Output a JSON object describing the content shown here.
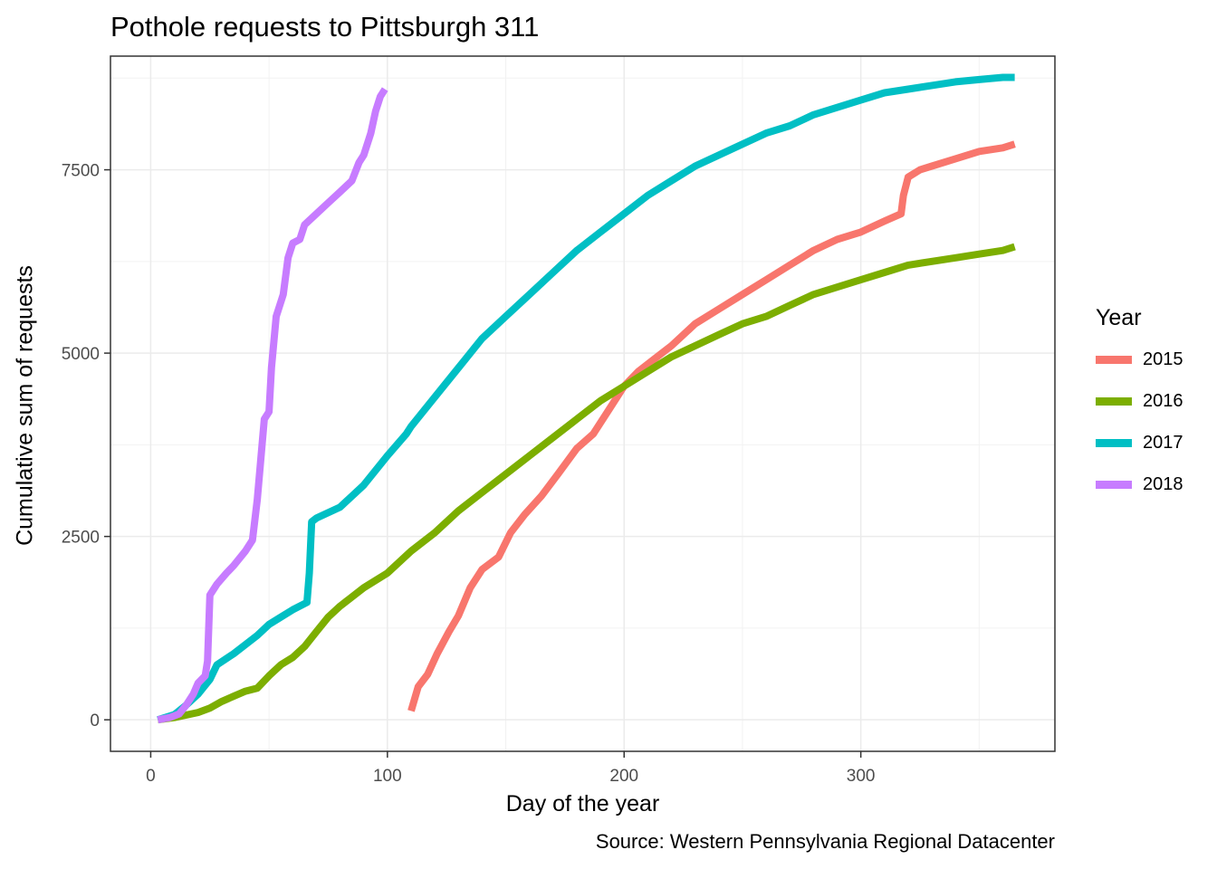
{
  "chart_data": {
    "type": "line",
    "title": "Pothole requests to Pittsburgh 311",
    "xlabel": "Day of the year",
    "ylabel": "Cumulative sum of requests",
    "caption": "Source: Western Pennsylvania Regional Datacenter",
    "xlim": [
      -17,
      382
    ],
    "ylim": [
      -430,
      9050
    ],
    "xticks": [
      0,
      100,
      200,
      300
    ],
    "yticks": [
      0,
      2500,
      5000,
      7500
    ],
    "grid": true,
    "legend_title": "Year",
    "legend_position": "right",
    "series": [
      {
        "name": "2015",
        "color": "#F8766D",
        "points": [
          [
            110,
            120
          ],
          [
            113,
            450
          ],
          [
            117,
            620
          ],
          [
            121,
            900
          ],
          [
            126,
            1200
          ],
          [
            130,
            1420
          ],
          [
            135,
            1800
          ],
          [
            140,
            2050
          ],
          [
            147,
            2220
          ],
          [
            152,
            2550
          ],
          [
            158,
            2800
          ],
          [
            165,
            3050
          ],
          [
            172,
            3350
          ],
          [
            180,
            3700
          ],
          [
            187,
            3900
          ],
          [
            195,
            4300
          ],
          [
            200,
            4550
          ],
          [
            206,
            4750
          ],
          [
            212,
            4900
          ],
          [
            220,
            5100
          ],
          [
            230,
            5400
          ],
          [
            240,
            5600
          ],
          [
            250,
            5800
          ],
          [
            260,
            6000
          ],
          [
            270,
            6200
          ],
          [
            280,
            6400
          ],
          [
            290,
            6550
          ],
          [
            300,
            6650
          ],
          [
            310,
            6800
          ],
          [
            317,
            6900
          ],
          [
            318,
            7150
          ],
          [
            320,
            7400
          ],
          [
            325,
            7500
          ],
          [
            330,
            7550
          ],
          [
            340,
            7650
          ],
          [
            350,
            7750
          ],
          [
            360,
            7800
          ],
          [
            365,
            7850
          ]
        ]
      },
      {
        "name": "2016",
        "color": "#7CAE00",
        "points": [
          [
            3,
            0
          ],
          [
            10,
            30
          ],
          [
            20,
            100
          ],
          [
            25,
            160
          ],
          [
            30,
            250
          ],
          [
            35,
            320
          ],
          [
            40,
            390
          ],
          [
            45,
            430
          ],
          [
            50,
            600
          ],
          [
            55,
            750
          ],
          [
            60,
            850
          ],
          [
            65,
            1000
          ],
          [
            70,
            1200
          ],
          [
            75,
            1400
          ],
          [
            80,
            1550
          ],
          [
            90,
            1800
          ],
          [
            100,
            2000
          ],
          [
            110,
            2300
          ],
          [
            120,
            2550
          ],
          [
            130,
            2850
          ],
          [
            140,
            3100
          ],
          [
            150,
            3350
          ],
          [
            160,
            3600
          ],
          [
            170,
            3850
          ],
          [
            180,
            4100
          ],
          [
            190,
            4350
          ],
          [
            200,
            4550
          ],
          [
            210,
            4750
          ],
          [
            220,
            4950
          ],
          [
            230,
            5100
          ],
          [
            240,
            5250
          ],
          [
            250,
            5400
          ],
          [
            260,
            5500
          ],
          [
            270,
            5650
          ],
          [
            280,
            5800
          ],
          [
            290,
            5900
          ],
          [
            300,
            6000
          ],
          [
            310,
            6100
          ],
          [
            320,
            6200
          ],
          [
            330,
            6250
          ],
          [
            340,
            6300
          ],
          [
            350,
            6350
          ],
          [
            360,
            6400
          ],
          [
            365,
            6450
          ]
        ]
      },
      {
        "name": "2017",
        "color": "#00BFC4",
        "points": [
          [
            3,
            0
          ],
          [
            10,
            70
          ],
          [
            15,
            200
          ],
          [
            20,
            350
          ],
          [
            25,
            550
          ],
          [
            28,
            750
          ],
          [
            35,
            900
          ],
          [
            45,
            1150
          ],
          [
            50,
            1300
          ],
          [
            55,
            1400
          ],
          [
            60,
            1500
          ],
          [
            66,
            1600
          ],
          [
            67,
            2000
          ],
          [
            68,
            2700
          ],
          [
            70,
            2750
          ],
          [
            80,
            2900
          ],
          [
            90,
            3200
          ],
          [
            100,
            3600
          ],
          [
            108,
            3900
          ],
          [
            110,
            4000
          ],
          [
            115,
            4200
          ],
          [
            120,
            4400
          ],
          [
            130,
            4800
          ],
          [
            140,
            5200
          ],
          [
            150,
            5500
          ],
          [
            160,
            5800
          ],
          [
            170,
            6100
          ],
          [
            180,
            6400
          ],
          [
            190,
            6650
          ],
          [
            200,
            6900
          ],
          [
            210,
            7150
          ],
          [
            220,
            7350
          ],
          [
            230,
            7550
          ],
          [
            240,
            7700
          ],
          [
            250,
            7850
          ],
          [
            260,
            8000
          ],
          [
            270,
            8100
          ],
          [
            280,
            8250
          ],
          [
            290,
            8350
          ],
          [
            300,
            8450
          ],
          [
            310,
            8550
          ],
          [
            320,
            8600
          ],
          [
            330,
            8650
          ],
          [
            340,
            8700
          ],
          [
            350,
            8730
          ],
          [
            360,
            8760
          ],
          [
            365,
            8760
          ]
        ]
      },
      {
        "name": "2018",
        "color": "#C77CFF",
        "points": [
          [
            3,
            0
          ],
          [
            8,
            30
          ],
          [
            12,
            80
          ],
          [
            15,
            200
          ],
          [
            18,
            350
          ],
          [
            20,
            500
          ],
          [
            23,
            600
          ],
          [
            24,
            800
          ],
          [
            25,
            1700
          ],
          [
            28,
            1850
          ],
          [
            32,
            2000
          ],
          [
            35,
            2100
          ],
          [
            40,
            2300
          ],
          [
            43,
            2450
          ],
          [
            45,
            3000
          ],
          [
            48,
            4100
          ],
          [
            50,
            4200
          ],
          [
            51,
            4800
          ],
          [
            53,
            5500
          ],
          [
            56,
            5800
          ],
          [
            58,
            6300
          ],
          [
            60,
            6500
          ],
          [
            63,
            6550
          ],
          [
            65,
            6750
          ],
          [
            70,
            6900
          ],
          [
            75,
            7050
          ],
          [
            80,
            7200
          ],
          [
            85,
            7350
          ],
          [
            88,
            7600
          ],
          [
            90,
            7700
          ],
          [
            93,
            8000
          ],
          [
            95,
            8300
          ],
          [
            97,
            8500
          ],
          [
            99,
            8600
          ]
        ]
      }
    ]
  }
}
